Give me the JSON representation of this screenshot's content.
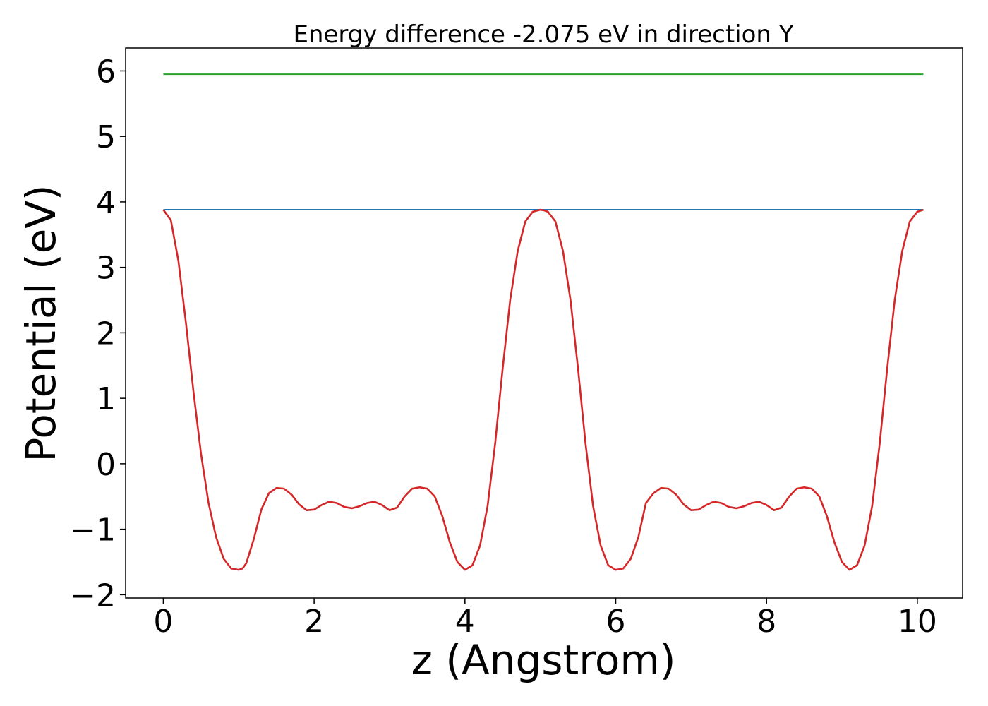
{
  "chart_data": {
    "type": "line",
    "title": "Energy difference -2.075 eV in direction Y",
    "xlabel": "z (Angstrom)",
    "ylabel": "Potential (eV)",
    "xlim": [
      -0.5,
      10.6
    ],
    "ylim": [
      -2.05,
      6.35
    ],
    "xticks": [
      0,
      2,
      4,
      6,
      8,
      10
    ],
    "yticks": [
      -2,
      -1,
      0,
      1,
      2,
      3,
      4,
      5,
      6
    ],
    "xtick_labels": [
      "0",
      "2",
      "4",
      "6",
      "8",
      "10"
    ],
    "ytick_labels": [
      "−2",
      "−1",
      "0",
      "1",
      "2",
      "3",
      "4",
      "5",
      "6"
    ],
    "grid": false,
    "series": [
      {
        "color": "#d62728",
        "x": [
          0,
          0.1,
          0.2,
          0.3,
          0.4,
          0.5,
          0.6,
          0.7,
          0.8,
          0.9,
          1.0,
          1.05,
          1.1,
          1.2,
          1.3,
          1.4,
          1.5,
          1.6,
          1.7,
          1.8,
          1.9,
          2.0,
          2.1,
          2.2,
          2.3,
          2.4,
          2.5,
          2.6,
          2.7,
          2.8,
          2.9,
          3.0,
          3.1,
          3.2,
          3.3,
          3.4,
          3.5,
          3.6,
          3.7,
          3.8,
          3.9,
          4.0,
          4.1,
          4.2,
          4.3,
          4.4,
          4.5,
          4.6,
          4.7,
          4.8,
          4.9,
          5.0,
          5.05,
          5.1,
          5.2,
          5.3,
          5.4,
          5.5,
          5.6,
          5.7,
          5.8,
          5.9,
          6.0,
          6.1,
          6.2,
          6.3,
          6.4,
          6.5,
          6.6,
          6.7,
          6.8,
          6.9,
          7.0,
          7.1,
          7.2,
          7.3,
          7.4,
          7.5,
          7.6,
          7.7,
          7.8,
          7.9,
          8.0,
          8.1,
          8.2,
          8.3,
          8.4,
          8.5,
          8.6,
          8.7,
          8.8,
          8.9,
          9.0,
          9.1,
          9.2,
          9.3,
          9.4,
          9.5,
          9.6,
          9.7,
          9.8,
          9.9,
          10.0,
          10.08
        ],
        "y": [
          3.88,
          3.72,
          3.1,
          2.15,
          1.1,
          0.15,
          -0.6,
          -1.12,
          -1.45,
          -1.6,
          -1.62,
          -1.6,
          -1.52,
          -1.15,
          -0.7,
          -0.45,
          -0.37,
          -0.38,
          -0.47,
          -0.62,
          -0.71,
          -0.7,
          -0.63,
          -0.58,
          -0.6,
          -0.66,
          -0.68,
          -0.65,
          -0.6,
          -0.58,
          -0.63,
          -0.71,
          -0.67,
          -0.5,
          -0.38,
          -0.36,
          -0.38,
          -0.5,
          -0.8,
          -1.2,
          -1.5,
          -1.62,
          -1.55,
          -1.25,
          -0.65,
          0.3,
          1.45,
          2.5,
          3.25,
          3.7,
          3.85,
          3.88,
          3.87,
          3.85,
          3.7,
          3.25,
          2.5,
          1.45,
          0.3,
          -0.65,
          -1.25,
          -1.55,
          -1.62,
          -1.6,
          -1.45,
          -1.12,
          -0.6,
          -0.45,
          -0.37,
          -0.38,
          -0.47,
          -0.62,
          -0.71,
          -0.7,
          -0.63,
          -0.58,
          -0.6,
          -0.66,
          -0.68,
          -0.65,
          -0.6,
          -0.58,
          -0.63,
          -0.71,
          -0.67,
          -0.5,
          -0.38,
          -0.36,
          -0.38,
          -0.5,
          -0.8,
          -1.2,
          -1.5,
          -1.62,
          -1.55,
          -1.25,
          -0.65,
          0.3,
          1.45,
          2.5,
          3.25,
          3.7,
          3.85,
          3.88
        ]
      },
      {
        "color": "#1f77b4",
        "x": [
          0,
          10.08
        ],
        "y": [
          3.88,
          3.88
        ]
      },
      {
        "color": "#2ca02c",
        "x": [
          0,
          10.08
        ],
        "y": [
          5.95,
          5.95
        ]
      }
    ]
  }
}
